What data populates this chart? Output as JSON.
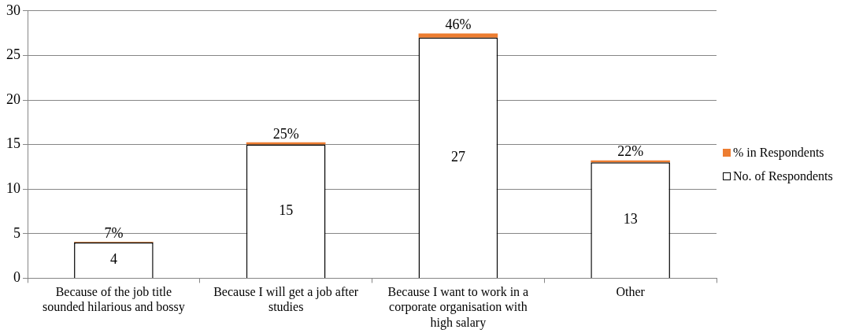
{
  "chart_data": {
    "type": "bar",
    "stacked": true,
    "categories": [
      "Because of the job title sounded hilarious and bossy",
      "Because I will get a job after studies",
      "Because I want to work in a corporate organisation with high salary",
      "Other"
    ],
    "series": [
      {
        "name": "No. of Respondents",
        "color": "#ffffff",
        "values": [
          4,
          15,
          27,
          13
        ],
        "value_labels": [
          "4",
          "15",
          "27",
          "13"
        ]
      },
      {
        "name": "% in Respondents",
        "color": "#ed7d31",
        "values": [
          0.07,
          0.25,
          0.46,
          0.22
        ],
        "value_labels": [
          "7%",
          "25%",
          "46%",
          "22%"
        ]
      }
    ],
    "ylim": [
      0,
      30
    ],
    "yticks": [
      0,
      5,
      10,
      15,
      20,
      25,
      30
    ],
    "grid": "y",
    "legend": "right"
  }
}
